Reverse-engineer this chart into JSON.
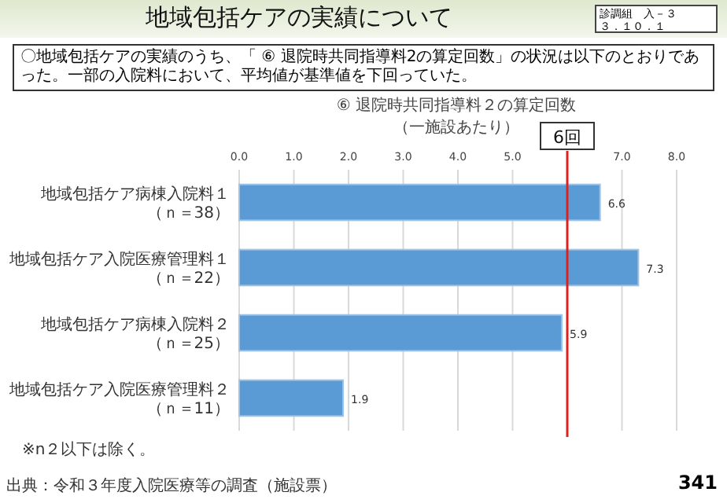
{
  "chart_data": {
    "type": "bar",
    "orientation": "horizontal",
    "title": "⑥ 退院時共同指導料２の算定回数",
    "subtitle": "（一施設あたり）",
    "categories": [
      "地域包括ケア病棟入院料１（ｎ＝38）",
      "地域包括ケア入院医療管理料１（ｎ＝22）",
      "地域包括ケア病棟入院料２（ｎ＝25）",
      "地域包括ケア入院医療管理料２（ｎ＝11）"
    ],
    "values": [
      6.6,
      7.3,
      5.9,
      1.9
    ],
    "color": "#5b9bd5",
    "data_labels": true,
    "xlim": [
      0,
      8
    ],
    "xticks": [
      {
        "value": 0,
        "label": "0.0"
      },
      {
        "value": 1,
        "label": "1.0"
      },
      {
        "value": 2,
        "label": "2.0"
      },
      {
        "value": 3,
        "label": "3.0"
      },
      {
        "value": 4,
        "label": "4.0"
      },
      {
        "value": 5,
        "label": "5.0"
      },
      {
        "value": 6,
        "label": null
      },
      {
        "value": 7,
        "label": "7.0"
      },
      {
        "value": 8,
        "label": "8.0"
      }
    ],
    "grid": "x",
    "ref_lines": [
      {
        "axis": "x",
        "value": 6,
        "label": "6回",
        "color": "#e0201c"
      }
    ],
    "annotations": [
      "地域包括ケアの実績について",
      "診調組　入－３",
      "３．１０．１",
      "〇地域包括ケアの実績のうち、「 ⑥ 退院時共同指導料2の算定回数」の状況は以下のとおりであった。一部の入院料において、平均値が基準値を下回っていた。",
      "※n２以下は除く。",
      "出典：令和３年度入院医療等の調査（施設票）",
      "341"
    ]
  }
}
